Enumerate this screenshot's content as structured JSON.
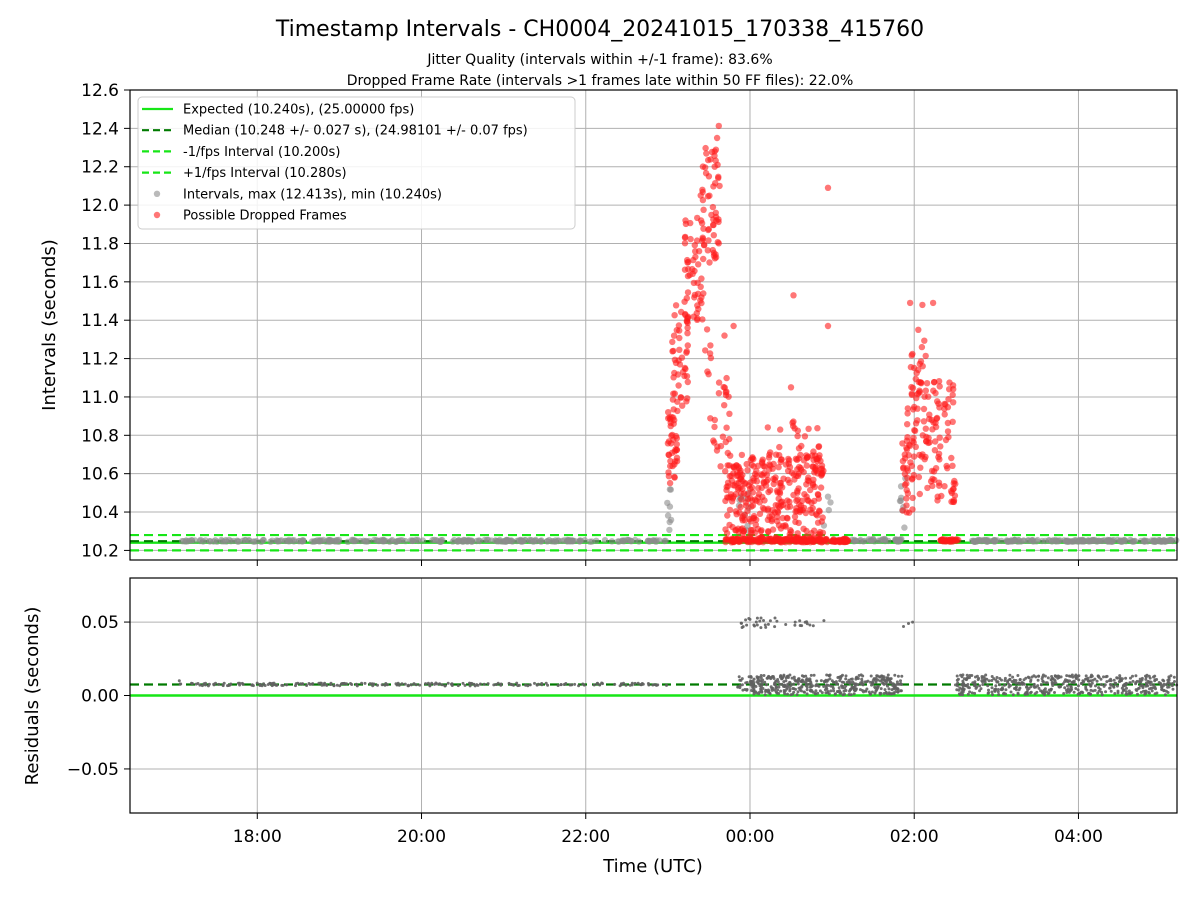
{
  "chart_data": {
    "title": "Timestamp Intervals - CH0004_20241015_170338_415760",
    "subtitle_lines": [
      "Jitter Quality (intervals within +/-1 frame): 83.6%",
      "Dropped Frame Rate (intervals >1 frames late within 50 FF files): 22.0%"
    ],
    "xlabel": "Time (UTC)",
    "x_time_range_hours": [
      16.45,
      29.2
    ],
    "x_ticks": [
      {
        "label": "18:00",
        "value": 18
      },
      {
        "label": "20:00",
        "value": 20
      },
      {
        "label": "22:00",
        "value": 22
      },
      {
        "label": "00:00",
        "value": 24
      },
      {
        "label": "02:00",
        "value": 26
      },
      {
        "label": "04:00",
        "value": 28
      }
    ],
    "colors": {
      "expected": "#17e617",
      "median": "#007a00",
      "fps_bounds": "#17e617",
      "intervals": "#8c8c8c",
      "dropped": "#ff1a1a",
      "residuals": "#606060",
      "grid": "#b0b0b0"
    },
    "panels": [
      {
        "type": "scatter",
        "ylabel": "Intervals (seconds)",
        "ylim": [
          10.15,
          12.6
        ],
        "yticks": [
          "10.2",
          "10.4",
          "10.6",
          "10.8",
          "11.0",
          "11.2",
          "11.4",
          "11.6",
          "11.8",
          "12.0",
          "12.2",
          "12.4",
          "12.6"
        ],
        "grid": "on",
        "legend_position": "top-left",
        "legend": [
          {
            "label": "Expected (10.240s), (25.00000 fps)",
            "style": "solid-line",
            "color": "#17e617"
          },
          {
            "label": "Median (10.248 +/- 0.027 s), (24.98101 +/- 0.07 fps)",
            "style": "dashed-line",
            "color": "#007a00"
          },
          {
            "label": "-1/fps Interval (10.200s)",
            "style": "dashed-line",
            "color": "#17e617"
          },
          {
            "label": "+1/fps Interval (10.280s)",
            "style": "dashed-line",
            "color": "#17e617"
          },
          {
            "label": "Intervals, max (12.413s), min (10.240s)",
            "style": "marker",
            "color": "#8c8c8c"
          },
          {
            "label": "Possible Dropped Frames",
            "style": "marker",
            "color": "#ff1a1a"
          }
        ],
        "reference_lines": [
          {
            "name": "expected",
            "y": 10.24
          },
          {
            "name": "median",
            "y": 10.248
          },
          {
            "name": "minus_one_fps",
            "y": 10.2
          },
          {
            "name": "plus_one_fps",
            "y": 10.28
          }
        ],
        "series": [
          {
            "name": "Intervals, max (12.413s), min (10.240s)",
            "kind": "clusters",
            "clusters": [
              {
                "t": [
                  17.05,
                  23.0
                ],
                "y": [
                  10.245,
                  10.255
                ],
                "n": 260
              },
              {
                "t": [
                  22.98,
                  23.05
                ],
                "y": [
                  10.3,
                  10.56
                ],
                "n": 8
              },
              {
                "t": [
                  23.85,
                  24.0
                ],
                "y": [
                  10.3,
                  10.5
                ],
                "n": 10
              },
              {
                "t": [
                  25.15,
                  25.85
                ],
                "y": [
                  10.245,
                  10.26
                ],
                "n": 35
              },
              {
                "t": [
                  25.82,
                  25.9
                ],
                "y": [
                  10.3,
                  10.6
                ],
                "n": 8
              },
              {
                "t": [
                  26.7,
                  29.2
                ],
                "y": [
                  10.245,
                  10.255
                ],
                "n": 180
              }
            ],
            "points": [
              [
                24.95,
                10.48
              ],
              [
                24.98,
                10.45
              ],
              [
                24.96,
                10.41
              ],
              [
                24.9,
                10.33
              ]
            ]
          },
          {
            "name": "Possible Dropped Frames",
            "kind": "clusters",
            "clusters": [
              {
                "t": [
                  23.0,
                  23.12
                ],
                "y": [
                  10.55,
                  10.95
                ],
                "n": 40
              },
              {
                "t": [
                  23.05,
                  23.25
                ],
                "y": [
                  10.95,
                  11.5
                ],
                "n": 45
              },
              {
                "t": [
                  23.2,
                  23.45
                ],
                "y": [
                  11.4,
                  11.95
                ],
                "n": 55
              },
              {
                "t": [
                  23.4,
                  23.62
                ],
                "y": [
                  11.7,
                  12.3
                ],
                "n": 50
              },
              {
                "t": [
                  23.44,
                  23.55
                ],
                "y": [
                  10.88,
                  11.4
                ],
                "n": 8
              },
              {
                "t": [
                  23.55,
                  23.75
                ],
                "y": [
                  10.6,
                  11.15
                ],
                "n": 25
              },
              {
                "t": [
                  23.7,
                  24.9
                ],
                "y": [
                  10.25,
                  10.7
                ],
                "n": 340
              },
              {
                "t": [
                  23.7,
                  24.9
                ],
                "y": [
                  10.242,
                  10.262
                ],
                "n": 140
              },
              {
                "t": [
                  24.2,
                  24.85
                ],
                "y": [
                  10.6,
                  10.88
                ],
                "n": 28
              },
              {
                "t": [
                  24.9,
                  25.2
                ],
                "y": [
                  10.242,
                  10.262
                ],
                "n": 40
              },
              {
                "t": [
                  25.85,
                  26.0
                ],
                "y": [
                  10.35,
                  10.8
                ],
                "n": 30
              },
              {
                "t": [
                  25.9,
                  26.5
                ],
                "y": [
                  10.45,
                  11.1
                ],
                "n": 120
              },
              {
                "t": [
                  25.95,
                  26.25
                ],
                "y": [
                  11.0,
                  11.3
                ],
                "n": 18
              },
              {
                "t": [
                  26.3,
                  26.55
                ],
                "y": [
                  10.245,
                  10.258
                ],
                "n": 30
              }
            ],
            "points": [
              [
                23.62,
                12.413
              ],
              [
                23.6,
                12.35
              ],
              [
                23.57,
                12.28
              ],
              [
                23.57,
                12.2
              ],
              [
                23.5,
                12.15
              ],
              [
                23.4,
                12.05
              ],
              [
                23.63,
                12.1
              ],
              [
                25.95,
                11.49
              ],
              [
                26.1,
                11.48
              ],
              [
                26.23,
                11.49
              ],
              [
                26.05,
                11.35
              ],
              [
                24.95,
                12.09
              ],
              [
                24.53,
                11.53
              ],
              [
                24.95,
                11.37
              ],
              [
                23.8,
                11.37
              ],
              [
                24.5,
                11.05
              ],
              [
                23.69,
                11.32
              ]
            ]
          }
        ]
      },
      {
        "type": "scatter",
        "ylabel": "Residuals (seconds)",
        "ylim": [
          -0.08,
          0.08
        ],
        "yticks": [
          "−0.05",
          "0.00",
          "0.05"
        ],
        "grid": "on",
        "reference_lines": [
          {
            "name": "zero",
            "y": 0.0
          },
          {
            "name": "median_residual",
            "y": 0.0075
          }
        ],
        "series": [
          {
            "name": "residuals",
            "kind": "clusters",
            "clusters": [
              {
                "t": [
                  17.05,
                  23.0
                ],
                "y": [
                  0.0065,
                  0.0085
                ],
                "n": 200
              },
              {
                "t": [
                  23.85,
                  24.35
                ],
                "y": [
                  0.046,
                  0.053
                ],
                "n": 24
              },
              {
                "t": [
                  24.35,
                  24.8
                ],
                "y": [
                  0.047,
                  0.051
                ],
                "n": 10
              },
              {
                "t": [
                  23.85,
                  24.05
                ],
                "y": [
                  0.003,
                  0.013
                ],
                "n": 22
              },
              {
                "t": [
                  24.0,
                  25.85
                ],
                "y": [
                  0.0005,
                  0.014
                ],
                "n": 420
              },
              {
                "t": [
                  26.5,
                  29.2
                ],
                "y": [
                  0.0005,
                  0.014
                ],
                "n": 480
              }
            ],
            "points": [
              [
                25.87,
                0.047
              ],
              [
                25.93,
                0.049
              ],
              [
                25.98,
                0.05
              ],
              [
                24.9,
                0.051
              ],
              [
                24.55,
                0.05
              ],
              [
                17.05,
                0.01
              ]
            ]
          }
        ]
      }
    ]
  }
}
